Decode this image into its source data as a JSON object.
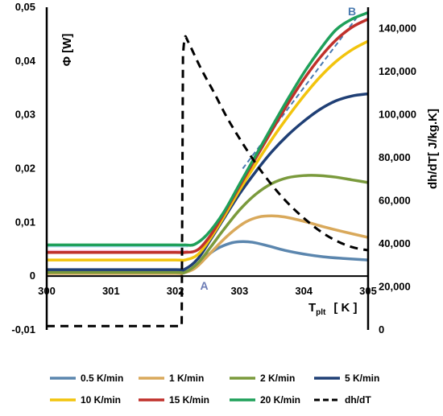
{
  "chart_data": {
    "type": "line",
    "x_axis": {
      "label_main": "T",
      "label_sub": "plt",
      "unit": "[ K ]",
      "range": [
        300,
        305
      ],
      "ticks": [
        300,
        301,
        302,
        303,
        304,
        305
      ],
      "tick_labels": [
        "300",
        "301",
        "302",
        "303",
        "304",
        "305"
      ]
    },
    "y_left": {
      "label": "Φ [W]",
      "range": [
        -0.01,
        0.05
      ],
      "ticks": [
        -0.01,
        0,
        0.01,
        0.02,
        0.03,
        0.04,
        0.05
      ],
      "tick_labels": [
        "-0,01",
        "0",
        "0,01",
        "0,02",
        "0,03",
        "0,04",
        "0,05"
      ]
    },
    "y_right": {
      "label": "dh/dT[ J/kg.K]",
      "range": [
        0,
        150000
      ],
      "ticks": [
        0,
        20000,
        40000,
        60000,
        80000,
        100000,
        120000,
        140000
      ],
      "tick_labels": [
        "0",
        "20,000",
        "40,000",
        "60,000",
        "80,000",
        "100,000",
        "120,000",
        "140,000"
      ]
    },
    "grid": false,
    "legend_position": "bottom",
    "annotations": [
      {
        "text": "A",
        "x": 302.45,
        "y": -0.0025,
        "color": "#6B7BB5"
      },
      {
        "text": "B",
        "x": 304.75,
        "y": 0.0485,
        "color": "#4A7AB0"
      }
    ],
    "series": [
      {
        "name": "0.5 K/min",
        "color": "#5B86AE",
        "axis": "left",
        "dash": "solid",
        "x": [
          300,
          301,
          302,
          302.1,
          302.25,
          302.45,
          302.65,
          302.85,
          303,
          303.2,
          303.45,
          303.7,
          304,
          304.3,
          304.6,
          305
        ],
        "y": [
          0.0007,
          0.0007,
          0.0007,
          0.0007,
          0.0013,
          0.0034,
          0.0051,
          0.0061,
          0.0064,
          0.0063,
          0.0056,
          0.0048,
          0.0041,
          0.0036,
          0.0033,
          0.003
        ]
      },
      {
        "name": "1 K/min",
        "color": "#D9A95B",
        "axis": "left",
        "dash": "solid",
        "x": [
          300,
          301,
          302,
          302.1,
          302.3,
          302.5,
          302.7,
          302.9,
          303.1,
          303.3,
          303.5,
          303.7,
          304,
          304.3,
          304.6,
          305
        ],
        "y": [
          0.0005,
          0.0005,
          0.0005,
          0.0005,
          0.0014,
          0.0037,
          0.0062,
          0.0084,
          0.0101,
          0.011,
          0.0112,
          0.011,
          0.0102,
          0.0092,
          0.0083,
          0.0072
        ]
      },
      {
        "name": "2 K/min",
        "color": "#7A9A3C",
        "axis": "left",
        "dash": "solid",
        "x": [
          300,
          301,
          302,
          302.15,
          302.35,
          302.55,
          302.75,
          303,
          303.25,
          303.5,
          303.75,
          304,
          304.25,
          304.5,
          304.75,
          305
        ],
        "y": [
          0.0007,
          0.0007,
          0.0007,
          0.0007,
          0.0024,
          0.0054,
          0.0086,
          0.0123,
          0.0152,
          0.0172,
          0.0183,
          0.0187,
          0.0187,
          0.0184,
          0.0179,
          0.0174
        ]
      },
      {
        "name": "5 K/min",
        "color": "#1F3F75",
        "axis": "left",
        "dash": "solid",
        "x": [
          300,
          301,
          302,
          302.15,
          302.35,
          302.55,
          302.75,
          303,
          303.25,
          303.5,
          303.75,
          304,
          304.25,
          304.5,
          304.75,
          305
        ],
        "y": [
          0.0012,
          0.0012,
          0.0012,
          0.0013,
          0.0032,
          0.0068,
          0.0106,
          0.0153,
          0.0194,
          0.0231,
          0.0262,
          0.0288,
          0.031,
          0.0326,
          0.0335,
          0.0339
        ]
      },
      {
        "name": "10 K/min",
        "color": "#F2C40D",
        "axis": "left",
        "dash": "solid",
        "x": [
          300,
          301,
          302,
          302.15,
          302.35,
          302.55,
          302.75,
          303,
          303.25,
          303.5,
          303.75,
          304,
          304.25,
          304.5,
          304.75,
          305
        ],
        "y": [
          0.003,
          0.003,
          0.003,
          0.003,
          0.004,
          0.0071,
          0.0109,
          0.016,
          0.0208,
          0.0254,
          0.0296,
          0.0335,
          0.037,
          0.0399,
          0.0421,
          0.0437
        ]
      },
      {
        "name": "15 K/min",
        "color": "#C0312B",
        "axis": "left",
        "dash": "solid",
        "x": [
          300,
          301,
          302,
          302.15,
          302.35,
          302.55,
          302.75,
          303,
          303.25,
          303.5,
          303.75,
          304,
          304.25,
          304.5,
          304.75,
          305
        ],
        "y": [
          0.0044,
          0.0044,
          0.0044,
          0.0044,
          0.0049,
          0.0076,
          0.0115,
          0.0167,
          0.0219,
          0.027,
          0.032,
          0.0366,
          0.0406,
          0.0439,
          0.0463,
          0.0478
        ]
      },
      {
        "name": "20 K/min",
        "color": "#1FA05A",
        "axis": "left",
        "dash": "solid",
        "x": [
          300,
          301,
          302,
          302.15,
          302.3,
          302.5,
          302.75,
          303,
          303.25,
          303.5,
          303.75,
          304,
          304.25,
          304.5,
          304.75,
          305
        ],
        "y": [
          0.0058,
          0.0058,
          0.0058,
          0.0058,
          0.0059,
          0.0078,
          0.0118,
          0.0171,
          0.0224,
          0.0277,
          0.0329,
          0.0378,
          0.0421,
          0.0458,
          0.0478,
          0.049
        ]
      },
      {
        "name": "dh/dT",
        "color": "#000000",
        "axis": "right",
        "dash": "dashed",
        "x": [
          300,
          302.1,
          302.12,
          302.15,
          302.2,
          302.4,
          302.6,
          302.8,
          303,
          303.25,
          303.5,
          303.75,
          304,
          304.25,
          304.5,
          304.75,
          305
        ],
        "y": [
          1800,
          1800,
          128000,
          136000,
          134000,
          121500,
          110500,
          99000,
          89000,
          77500,
          67500,
          59000,
          52000,
          46000,
          41500,
          38500,
          37000
        ]
      }
    ],
    "extra_lines": [
      {
        "color": "#4A7AB0",
        "axis": "left",
        "dash": "dashed",
        "x": [
          303.05,
          304.85
        ],
        "y": [
          0.02,
          0.0485
        ]
      },
      {
        "color": "#F2B6D0",
        "axis": "left",
        "dash": "solid",
        "x": [
          300,
          302.2
        ],
        "y": [
          0.0047,
          0.0047
        ]
      },
      {
        "color": "#A8D8EE",
        "axis": "left",
        "dash": "solid",
        "x": [
          300,
          302.2
        ],
        "y": [
          0.0055,
          0.0055
        ]
      }
    ]
  }
}
